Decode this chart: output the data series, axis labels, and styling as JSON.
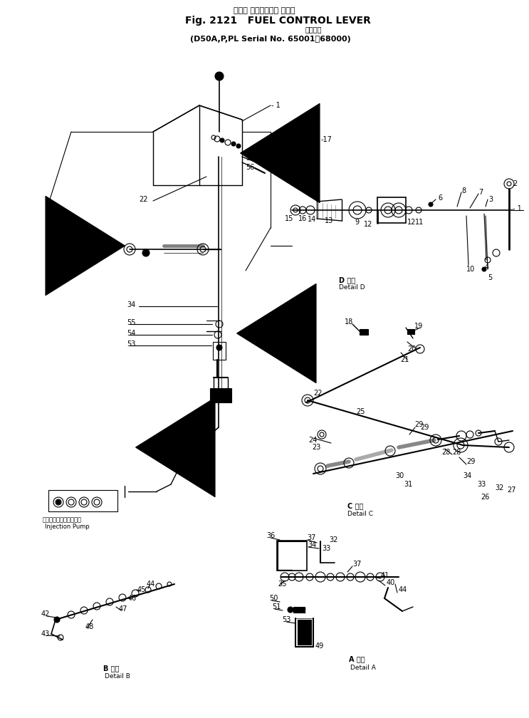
{
  "title_japanese": "フェル コントロール レバー",
  "title_english": "Fig. 2121   FUEL CONTROL LEVER",
  "subtitle_japanese": "適用号機",
  "subtitle_english": "D50A,P,PL Serial No. 65001～68000",
  "bg_color": "#ffffff",
  "injection_pump_ja": "インジェクションポンプ",
  "injection_pump_en": "Injection Pump"
}
